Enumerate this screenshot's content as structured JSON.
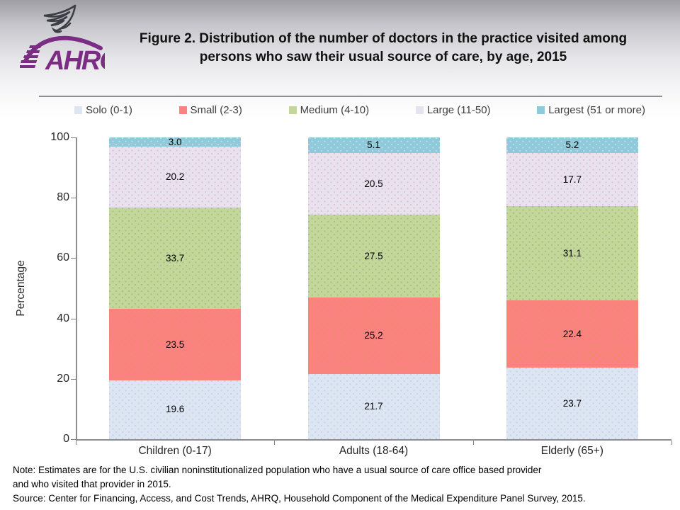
{
  "logo": {
    "org": "AHRQ",
    "eagle_icon": "hhs-eagle-icon",
    "brand_color": "#7b2d84"
  },
  "title": {
    "line1": "Figure 2. Distribution of the number of doctors in the practice visited among",
    "line2": "persons who saw their usual source of care, by age, 2015"
  },
  "chart_data": {
    "type": "bar",
    "stacked": true,
    "title": "Figure 2. Distribution of the number of doctors in the practice visited among persons who saw their usual source of care, by age, 2015",
    "categories": [
      "Children (0-17)",
      "Adults (18-64)",
      "Elderly (65+)"
    ],
    "series": [
      {
        "name": "Solo (0-1)",
        "values": [
          19.6,
          21.7,
          23.7
        ],
        "color": "#dce5f1",
        "dot_color": "#c3d4ea"
      },
      {
        "name": "Small (2-3)",
        "values": [
          23.5,
          25.2,
          22.4
        ],
        "color": "#fc8181",
        "dot_color": "#e0935a"
      },
      {
        "name": "Medium (4-10)",
        "values": [
          33.7,
          27.5,
          31.1
        ],
        "color": "#c3d69b",
        "dot_color": "#a6c26e"
      },
      {
        "name": "Large (11-50)",
        "values": [
          20.2,
          20.5,
          17.7
        ],
        "color": "#e7e2ee",
        "dot_color": "#e3bcd2"
      },
      {
        "name": "Largest (51 or more)",
        "values": [
          3.0,
          5.1,
          5.2
        ],
        "color": "#8fc9da",
        "dot_color": "#b8e0e8"
      }
    ],
    "xlabel": "",
    "ylabel": "Percentage",
    "ylim": [
      0,
      100
    ],
    "yticks": [
      0,
      20,
      40,
      60,
      80,
      100
    ],
    "legend_position": "top",
    "grid": false,
    "value_label_decimals": 1
  },
  "notes": {
    "line1": "Note: Estimates are for the U.S. civilian noninstitutionalized population who have a usual source of care office based provider",
    "line2": "and who visited that provider in 2015.",
    "line3": "Source: Center for Financing, Access, and Cost Trends, AHRQ, Household Component of the Medical Expenditure Panel Survey, 2015."
  }
}
